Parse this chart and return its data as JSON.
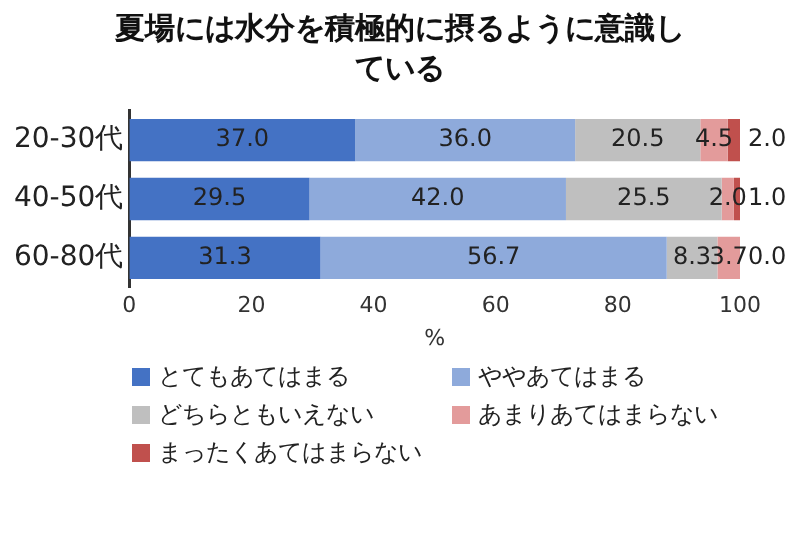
{
  "chart_data": {
    "type": "bar",
    "orientation": "horizontal",
    "stacked": true,
    "title": "夏場には水分を積極的に摂るように意識している",
    "xlabel": "%",
    "categories": [
      "20-30代",
      "40-50代",
      "60-80代"
    ],
    "series": [
      {
        "name": "とてもあてはまる",
        "color": "#4472c4",
        "values": [
          37.0,
          29.5,
          31.3
        ],
        "value_labels": [
          "37.0",
          "29.5",
          "31.3"
        ]
      },
      {
        "name": "ややあてはまる",
        "color": "#8eaadb",
        "values": [
          36.0,
          42.0,
          56.7
        ],
        "value_labels": [
          "36.0",
          "42.0",
          "56.7"
        ]
      },
      {
        "name": "どちらともいえない",
        "color": "#bfbfbf",
        "values": [
          20.5,
          25.5,
          8.3
        ],
        "value_labels": [
          "20.5",
          "25.5",
          "8.3"
        ]
      },
      {
        "name": "あまりあてはまらない",
        "color": "#e39b9b",
        "values": [
          4.5,
          2.0,
          3.7
        ],
        "value_labels": [
          "4.5",
          "2.0",
          "3.7"
        ]
      },
      {
        "name": "まったくあてはまらない",
        "color": "#c0504d",
        "values": [
          2.0,
          1.0,
          0.0
        ],
        "value_labels": [
          "2.0",
          "1.0",
          "0.0"
        ]
      }
    ],
    "xlim": [
      0,
      100
    ],
    "xticks": [
      0,
      20,
      40,
      60,
      80,
      100
    ],
    "grid": false,
    "legend": "bottom"
  }
}
